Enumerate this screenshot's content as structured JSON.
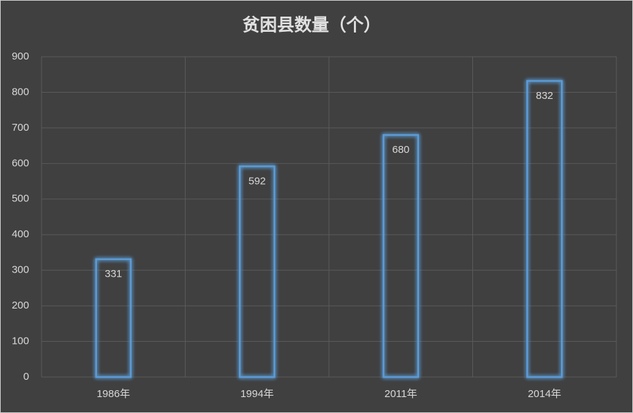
{
  "chart_data": {
    "type": "bar",
    "title": "贫困县数量（个）",
    "categories": [
      "1986年",
      "1994年",
      "2011年",
      "2014年"
    ],
    "values": [
      331,
      592,
      680,
      832
    ],
    "color": "#5b9bd5",
    "ylim": [
      0,
      900
    ],
    "yticks": [
      0,
      100,
      200,
      300,
      400,
      500,
      600,
      700,
      800,
      900
    ],
    "grid": true
  }
}
